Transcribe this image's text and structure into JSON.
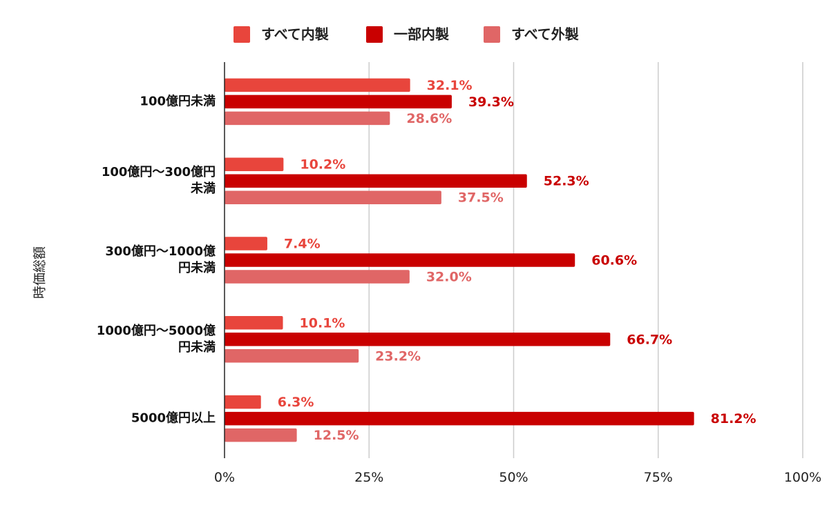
{
  "chart_data": {
    "type": "bar",
    "orientation": "horizontal",
    "ylabel": "時価総額",
    "xlabel": "",
    "xlim": [
      0,
      100
    ],
    "x_ticks": [
      "0%",
      "25%",
      "50%",
      "75%",
      "100%"
    ],
    "grid": true,
    "legend_position": "top",
    "categories": [
      [
        "100億円未満"
      ],
      [
        "100億円～300億円",
        "未満"
      ],
      [
        "300億円～1000億",
        "円未満"
      ],
      [
        "1000億円～5000億",
        "円未満"
      ],
      [
        "5000億円以上"
      ]
    ],
    "series": [
      {
        "name": "すべて内製",
        "color": "#e8453c",
        "values": [
          32.1,
          10.2,
          7.4,
          10.1,
          6.3
        ],
        "labels": [
          "32.1%",
          "10.2%",
          "7.4%",
          "10.1%",
          "6.3%"
        ]
      },
      {
        "name": "一部内製",
        "color": "#c90000",
        "values": [
          39.3,
          52.3,
          60.6,
          66.7,
          81.2
        ],
        "labels": [
          "39.3%",
          "52.3%",
          "60.6%",
          "66.7%",
          "81.2%"
        ]
      },
      {
        "name": "すべて外製",
        "color": "#e06666",
        "values": [
          28.6,
          37.5,
          32.0,
          23.2,
          12.5
        ],
        "labels": [
          "28.6%",
          "37.5%",
          "32.0%",
          "23.2%",
          "12.5%"
        ]
      }
    ]
  }
}
